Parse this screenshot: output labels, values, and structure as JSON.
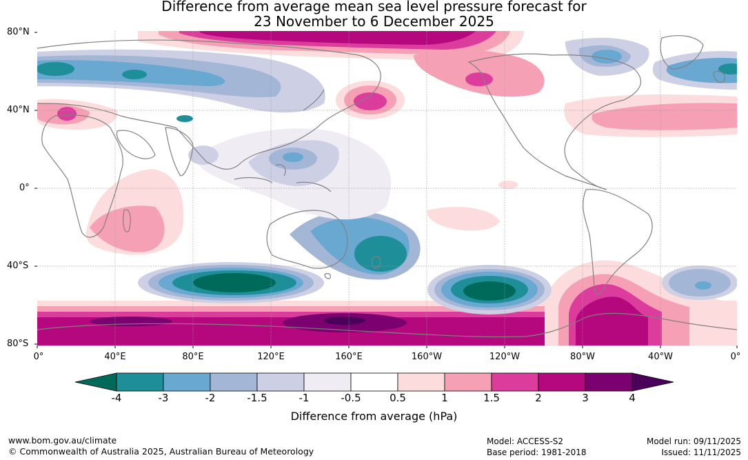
{
  "title_line1": "Difference from average mean sea level pressure forecast for",
  "title_line2": "23 November to 6 December 2025",
  "map": {
    "lat_labels": [
      "80°N",
      "40°N",
      "0°",
      "40°S",
      "80°S"
    ],
    "lon_labels": [
      "0°",
      "40°E",
      "80°E",
      "120°E",
      "160°E",
      "160°W",
      "120°W",
      "80°W",
      "40°W",
      "0°"
    ],
    "colors": {
      "land_coast": "#808080",
      "graticule": "#9a9a9a"
    }
  },
  "colorbar": {
    "title": "Difference from average (hPa)",
    "tick_labels": [
      "-4",
      "-3",
      "-2",
      "-1.5",
      "-1",
      "-0.5",
      "0.5",
      "1",
      "1.5",
      "2",
      "3",
      "4"
    ],
    "colors": [
      "#006a5a",
      "#1e8f99",
      "#68a8d1",
      "#a4b6d6",
      "#cdd0e5",
      "#f0ecf3",
      "#ffffff",
      "#fcdcdc",
      "#f5a0b4",
      "#dc3d9c",
      "#b5087f",
      "#7b0070",
      "#4b0059"
    ]
  },
  "footer": {
    "website": "www.bom.gov.au/climate",
    "copyright": "© Commonwealth of Australia 2025, Australian Bureau of Meteorology",
    "model": "Model: ACCESS-S2",
    "base_period": "Base period: 1981-2018",
    "model_run": "Model run: 09/11/2025",
    "issued": "Issued: 11/11/2025"
  }
}
